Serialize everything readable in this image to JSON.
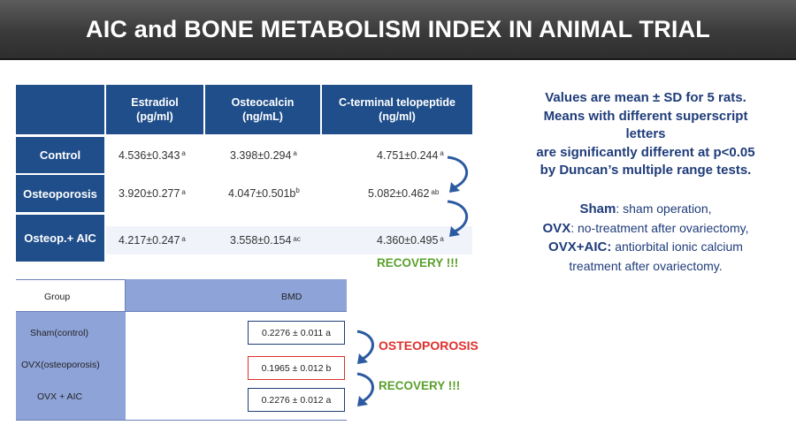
{
  "title": "AIC and BONE METABOLISM INDEX IN ANIMAL TRIAL",
  "table1": {
    "headers": [
      "Estradiol\n(pg/ml)",
      "Osteocalcin\n(ng/mL)",
      "C-terminal telopeptide\n(ng/ml)"
    ],
    "rows": [
      {
        "label": "Control",
        "estradiol": "4.536±0.343",
        "estradiol_sup": "a",
        "osteocalcin": "3.398±0.294",
        "osteocalcin_sup": "a",
        "ctx": "4.751±0.244",
        "ctx_sup": "a"
      },
      {
        "label": "Osteoporosis",
        "estradiol": "3.920±0.277",
        "estradiol_sup": "a",
        "osteocalcin": "4.047±0.501b",
        "osteocalcin_sup": "b",
        "ctx": "5.082±0.462",
        "ctx_sup": "ab"
      },
      {
        "label": "Osteop.+ AIC",
        "estradiol": "4.217±0.247",
        "estradiol_sup": "a",
        "osteocalcin": "3.558±0.154",
        "osteocalcin_sup": "ac",
        "ctx": "4.360±0.495",
        "ctx_sup": "a"
      }
    ],
    "recovery_label": "RECOVERY !!!"
  },
  "table2": {
    "header_group": "Group",
    "header_bmd": "BMD",
    "rows": [
      {
        "group": "Sham(control)",
        "bmd": "0.2276 ± 0.011 a"
      },
      {
        "group": "OVX(osteoporosis)",
        "bmd": "0.1965 ± 0.012 b"
      },
      {
        "group": "OVX + AIC",
        "bmd": "0.2276 ± 0.012 a"
      }
    ],
    "osteoporosis_label": "OSTEOPOROSIS",
    "recovery_label": "RECOVERY !!!"
  },
  "note": {
    "line1": "Values are mean ± SD for 5 rats.",
    "line2": "Means with different superscript",
    "line3": "letters",
    "line4": "are significantly different at p<0.05",
    "line5": "by Duncan’s multiple range tests."
  },
  "legend": {
    "sham_term": "Sham",
    "sham_desc": ": sham operation,",
    "ovx_term": "OVX",
    "ovx_desc": ": no-treatment after ovariectomy,",
    "ovxaic_term": "OVX+AIC:",
    "ovxaic_desc": " antiorbital ionic calcium",
    "ovxaic_desc2": "treatment after ovariectomy."
  },
  "colors": {
    "header_blue": "#1f4e8a",
    "table2_blue": "#8ea3d8",
    "green": "#5aa02c",
    "red": "#e0302c",
    "note_blue": "#1f3c7a"
  }
}
